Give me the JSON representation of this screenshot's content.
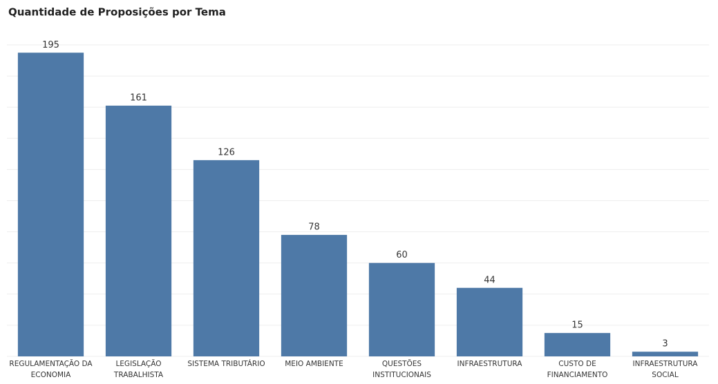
{
  "chart_data": {
    "type": "bar",
    "title": "Quantidade de Proposições por Tema",
    "categories": [
      "REGULAMENTAÇÃO DA ECONOMIA",
      "LEGISLAÇÃO TRABALHISTA",
      "SISTEMA TRIBUTÁRIO",
      "MEIO AMBIENTE",
      "QUESTÕES INSTITUCIONAIS",
      "INFRAESTRUTURA",
      "CUSTO DE FINANCIAMENTO",
      "INFRAESTRUTURA SOCIAL"
    ],
    "values": [
      195,
      161,
      126,
      78,
      60,
      44,
      15,
      3
    ],
    "color": "#4e79a7",
    "ylim": [
      0,
      200
    ],
    "yticks": [
      0,
      20,
      40,
      60,
      80,
      100,
      120,
      140,
      160,
      180,
      200
    ],
    "grid": true
  }
}
